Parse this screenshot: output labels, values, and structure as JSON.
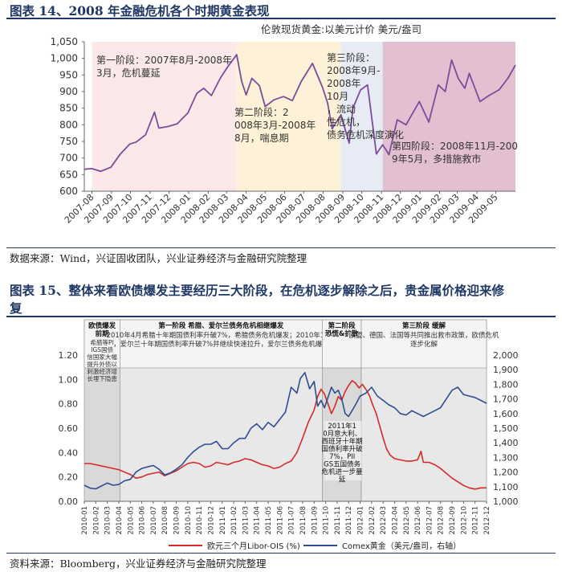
{
  "fig14": {
    "caption": "图表 14、2008 年金融危机各个时期黄金表现",
    "source": "数据来源：Wind，兴证固收团队，兴业证券经济与金融研究院整理",
    "chart_data": {
      "type": "line",
      "title": "伦敦现货黄金:以美元计价  美元/盎司",
      "ylim": [
        600,
        1050
      ],
      "yticks": [
        "600",
        "650",
        "700",
        "750",
        "800",
        "850",
        "900",
        "950",
        "1,000",
        "1,050"
      ],
      "x_range": [
        "2007-07-20",
        "2009-06-01"
      ],
      "xticks": [
        "2007-08",
        "2007-09",
        "2007-10",
        "2007-11",
        "2007-12",
        "2008-01",
        "2008-02",
        "2008-03",
        "2008-04",
        "2008-05",
        "2008-06",
        "2008-07",
        "2008-08",
        "2008-09",
        "2008-10",
        "2008-11",
        "2008-12",
        "2009-01",
        "2009-02",
        "2009-03",
        "2009-04",
        "2009-05"
      ],
      "phases": [
        {
          "label": "第一阶段：2007年8月-2008年3月，危机蔓延",
          "from": "2007-08-01",
          "to": "2008-03-17",
          "color": "#fbe9e9"
        },
        {
          "label": "第二阶段：2008年3月-2008年8月，喘息期",
          "from": "2008-03-17",
          "to": "2008-08-29",
          "color": "#fdf1d7"
        },
        {
          "label": "第三阶段：2008年9月-2008年10月，流动性危机，债务危机深度演化",
          "from": "2008-08-29",
          "to": "2008-11-03",
          "color": "#e6ebf5"
        },
        {
          "label": "第四阶段：2008年11月-2009年5月，多措施救市",
          "from": "2008-11-03",
          "to": "2009-06-01",
          "color": "#e2c0d1"
        }
      ],
      "series": [
        {
          "color": "#7b4c9a",
          "points": [
            [
              "2007-07-20",
              666
            ],
            [
              "2007-08-01",
              668
            ],
            [
              "2007-08-15",
              660
            ],
            [
              "2007-08-31",
              672
            ],
            [
              "2007-09-15",
              712
            ],
            [
              "2007-09-30",
              742
            ],
            [
              "2007-10-10",
              748
            ],
            [
              "2007-10-25",
              770
            ],
            [
              "2007-11-08",
              838
            ],
            [
              "2007-11-15",
              790
            ],
            [
              "2007-11-30",
              795
            ],
            [
              "2007-12-14",
              803
            ],
            [
              "2007-12-31",
              836
            ],
            [
              "2008-01-14",
              895
            ],
            [
              "2008-01-25",
              910
            ],
            [
              "2008-02-06",
              888
            ],
            [
              "2008-02-20",
              940
            ],
            [
              "2008-03-03",
              975
            ],
            [
              "2008-03-17",
              1011
            ],
            [
              "2008-03-25",
              930
            ],
            [
              "2008-04-01",
              890
            ],
            [
              "2008-04-10",
              940
            ],
            [
              "2008-04-22",
              918
            ],
            [
              "2008-05-01",
              855
            ],
            [
              "2008-05-15",
              875
            ],
            [
              "2008-05-30",
              885
            ],
            [
              "2008-06-13",
              873
            ],
            [
              "2008-06-27",
              930
            ],
            [
              "2008-07-15",
              985
            ],
            [
              "2008-07-31",
              912
            ],
            [
              "2008-08-08",
              865
            ],
            [
              "2008-08-15",
              788
            ],
            [
              "2008-08-29",
              830
            ],
            [
              "2008-09-11",
              745
            ],
            [
              "2008-09-17",
              850
            ],
            [
              "2008-09-29",
              905
            ],
            [
              "2008-10-10",
              920
            ],
            [
              "2008-10-24",
              712
            ],
            [
              "2008-11-03",
              740
            ],
            [
              "2008-11-13",
              710
            ],
            [
              "2008-11-26",
              815
            ],
            [
              "2008-12-10",
              800
            ],
            [
              "2008-12-31",
              870
            ],
            [
              "2009-01-15",
              808
            ],
            [
              "2009-01-30",
              920
            ],
            [
              "2009-02-10",
              900
            ],
            [
              "2009-02-20",
              995
            ],
            [
              "2009-03-03",
              938
            ],
            [
              "2009-03-13",
              910
            ],
            [
              "2009-03-20",
              955
            ],
            [
              "2009-04-06",
              870
            ],
            [
              "2009-04-20",
              888
            ],
            [
              "2009-05-06",
              905
            ],
            [
              "2009-05-20",
              940
            ],
            [
              "2009-06-01",
              980
            ]
          ]
        }
      ]
    }
  },
  "fig15": {
    "caption_line1": "图表 15、整体来看欧债爆发主要经历三大阶段，在危机逐步解除之后，贵金属价格迎来修",
    "caption_line2": "复",
    "source": "资料来源：Bloomberg，兴业证券经济与金融研究院整理",
    "chart_data": {
      "type": "line",
      "x_range": [
        "2010-01",
        "2012-12"
      ],
      "xticks": [
        "2010-01",
        "2010-02",
        "2010-03",
        "2010-04",
        "2010-05",
        "2010-06",
        "2010-07",
        "2010-08",
        "2010-09",
        "2010-10",
        "2010-11",
        "2010-12",
        "2011-01",
        "2011-02",
        "2011-03",
        "2011-04",
        "2011-05",
        "2011-06",
        "2011-07",
        "2011-08",
        "2011-09",
        "2011-10",
        "2011-11",
        "2011-12",
        "2012-01",
        "2012-02",
        "2012-03",
        "2012-04",
        "2012-05",
        "2012-06",
        "2012-07",
        "2012-08",
        "2012-09",
        "2012-10",
        "2012-11",
        "2012-12"
      ],
      "ylim_left": [
        0.0,
        1.2
      ],
      "yticks_left": [
        "0.00",
        "0.20",
        "0.40",
        "0.60",
        "0.80",
        "1.00",
        "1.20"
      ],
      "ylim_right": [
        1000,
        2000
      ],
      "yticks_right": [
        "1,000",
        "1,100",
        "1,200",
        "1,300",
        "1,400",
        "1,500",
        "1,600",
        "1,700",
        "1,800",
        "1,900",
        "2,000"
      ],
      "phase_boxes": [
        {
          "title": "欧债爆发前期",
          "text": "希腊等PIIGS国债信国家大幅提升外债以刺激经济增长埋下隐患",
          "from": 0,
          "to": 3.1
        },
        {
          "title": "第一阶段 希腊、爱尔兰债务危机相继爆发",
          "text": "2010年4月希腊十年期国债利率升破7%，希腊债务危机爆发；2010年11月，爱尔兰十年期国债利率升破7%并继续快速拉升，爱尔兰债务危机爆发",
          "from": 3.1,
          "to": 20.7
        },
        {
          "title": "第二阶段 恐慌&扩散",
          "text": "",
          "from": 20.7,
          "to": 24.1
        },
        {
          "title": "第三阶段 缓解",
          "text": "欧盟、德国、法国等共同推出救市政策，欧债危机逐步化解",
          "from": 24.1,
          "to": 35
        }
      ],
      "annotation": "2011年10月意大利、西班牙十年期国债利率升破7%，PIIGS五国债务危机进一步蔓延",
      "legend": [
        "欧元三个月Libor-OIS (%)",
        "Comex黄金（美元/盎司，右轴）"
      ],
      "series": [
        {
          "name": "欧元三个月Libor-OIS (%)",
          "axis": "left",
          "color": "#d62a2a",
          "points": [
            [
              0,
              0.31
            ],
            [
              0.5,
              0.31
            ],
            [
              1,
              0.3
            ],
            [
              1.5,
              0.29
            ],
            [
              2,
              0.28
            ],
            [
              2.5,
              0.27
            ],
            [
              3,
              0.26
            ],
            [
              3.5,
              0.24
            ],
            [
              4,
              0.22
            ],
            [
              4.5,
              0.19
            ],
            [
              5,
              0.2
            ],
            [
              5.5,
              0.22
            ],
            [
              6,
              0.23
            ],
            [
              6.5,
              0.24
            ],
            [
              7,
              0.21
            ],
            [
              7.5,
              0.23
            ],
            [
              8,
              0.25
            ],
            [
              8.5,
              0.28
            ],
            [
              9,
              0.31
            ],
            [
              9.5,
              0.32
            ],
            [
              10,
              0.31
            ],
            [
              10.5,
              0.28
            ],
            [
              11,
              0.29
            ],
            [
              11.5,
              0.32
            ],
            [
              12,
              0.31
            ],
            [
              12.5,
              0.3
            ],
            [
              13,
              0.32
            ],
            [
              13.5,
              0.33
            ],
            [
              14,
              0.35
            ],
            [
              14.5,
              0.34
            ],
            [
              15,
              0.32
            ],
            [
              15.5,
              0.3
            ],
            [
              16,
              0.29
            ],
            [
              16.5,
              0.27
            ],
            [
              17,
              0.28
            ],
            [
              17.5,
              0.31
            ],
            [
              18,
              0.33
            ],
            [
              18.5,
              0.4
            ],
            [
              19,
              0.52
            ],
            [
              19.5,
              0.65
            ],
            [
              20,
              0.75
            ],
            [
              20.3,
              0.86
            ],
            [
              20.6,
              0.92
            ],
            [
              20.9,
              0.88
            ],
            [
              21.2,
              0.8
            ],
            [
              21.5,
              0.72
            ],
            [
              21.8,
              0.78
            ],
            [
              22.1,
              0.86
            ],
            [
              22.4,
              0.83
            ],
            [
              22.7,
              0.9
            ],
            [
              23,
              0.95
            ],
            [
              23.3,
              0.99
            ],
            [
              23.6,
              0.97
            ],
            [
              23.9,
              0.93
            ],
            [
              24.2,
              0.96
            ],
            [
              24.5,
              0.92
            ],
            [
              24.8,
              0.87
            ],
            [
              25.1,
              0.79
            ],
            [
              25.4,
              0.72
            ],
            [
              25.7,
              0.62
            ],
            [
              26,
              0.52
            ],
            [
              26.3,
              0.43
            ],
            [
              26.6,
              0.38
            ],
            [
              27,
              0.35
            ],
            [
              27.5,
              0.34
            ],
            [
              28,
              0.33
            ],
            [
              28.5,
              0.33
            ],
            [
              29,
              0.34
            ],
            [
              29.3,
              0.41
            ],
            [
              29.5,
              0.32
            ],
            [
              30,
              0.32
            ],
            [
              30.5,
              0.3
            ],
            [
              31,
              0.27
            ],
            [
              31.5,
              0.23
            ],
            [
              32,
              0.19
            ],
            [
              32.5,
              0.16
            ],
            [
              33,
              0.13
            ],
            [
              33.5,
              0.11
            ],
            [
              34,
              0.1
            ],
            [
              34.5,
              0.11
            ],
            [
              35,
              0.11
            ]
          ]
        },
        {
          "name": "Comex黄金（美元/盎司，右轴）",
          "axis": "right",
          "color": "#2f4d92",
          "points": [
            [
              0,
              1110
            ],
            [
              0.5,
              1090
            ],
            [
              1,
              1085
            ],
            [
              1.5,
              1105
            ],
            [
              2,
              1125
            ],
            [
              2.5,
              1110
            ],
            [
              3,
              1115
            ],
            [
              3.5,
              1140
            ],
            [
              4,
              1150
            ],
            [
              4.5,
              1200
            ],
            [
              5,
              1225
            ],
            [
              5.5,
              1235
            ],
            [
              6,
              1245
            ],
            [
              6.5,
              1220
            ],
            [
              7,
              1180
            ],
            [
              7.5,
              1195
            ],
            [
              8,
              1220
            ],
            [
              8.5,
              1250
            ],
            [
              9,
              1300
            ],
            [
              9.5,
              1340
            ],
            [
              10,
              1370
            ],
            [
              10.5,
              1390
            ],
            [
              11,
              1390
            ],
            [
              11.5,
              1410
            ],
            [
              12,
              1360
            ],
            [
              12.5,
              1360
            ],
            [
              13,
              1400
            ],
            [
              13.5,
              1430
            ],
            [
              14,
              1430
            ],
            [
              14.5,
              1500
            ],
            [
              15,
              1530
            ],
            [
              15.5,
              1490
            ],
            [
              16,
              1540
            ],
            [
              16.5,
              1510
            ],
            [
              17,
              1560
            ],
            [
              17.5,
              1610
            ],
            [
              18,
              1780
            ],
            [
              18.5,
              1740
            ],
            [
              18.8,
              1840
            ],
            [
              19.2,
              1880
            ],
            [
              19.6,
              1770
            ],
            [
              20,
              1820
            ],
            [
              20.3,
              1650
            ],
            [
              20.6,
              1690
            ],
            [
              20.9,
              1640
            ],
            [
              21.2,
              1710
            ],
            [
              21.5,
              1780
            ],
            [
              21.8,
              1740
            ],
            [
              22.1,
              1760
            ],
            [
              22.4,
              1700
            ],
            [
              22.7,
              1600
            ],
            [
              23,
              1580
            ],
            [
              23.3,
              1620
            ],
            [
              23.6,
              1660
            ],
            [
              24,
              1720
            ],
            [
              24.5,
              1740
            ],
            [
              25,
              1780
            ],
            [
              25.5,
              1720
            ],
            [
              26,
              1690
            ],
            [
              26.5,
              1660
            ],
            [
              27,
              1640
            ],
            [
              27.5,
              1600
            ],
            [
              28,
              1590
            ],
            [
              28.5,
              1620
            ],
            [
              29,
              1600
            ],
            [
              29.5,
              1580
            ],
            [
              30,
              1600
            ],
            [
              30.5,
              1620
            ],
            [
              31,
              1640
            ],
            [
              31.5,
              1700
            ],
            [
              32,
              1760
            ],
            [
              32.5,
              1780
            ],
            [
              33,
              1730
            ],
            [
              33.5,
              1720
            ],
            [
              34,
              1710
            ],
            [
              34.5,
              1690
            ],
            [
              35,
              1670
            ]
          ]
        }
      ]
    }
  }
}
